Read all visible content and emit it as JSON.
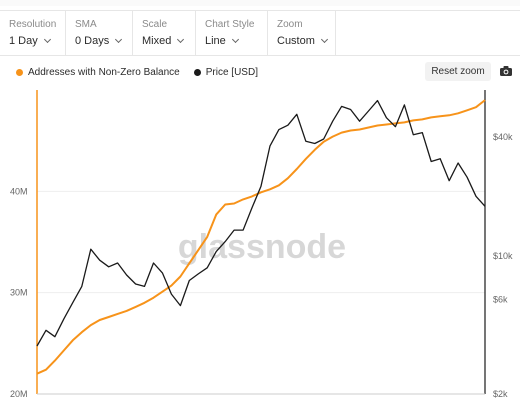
{
  "controls": [
    {
      "label": "Resolution",
      "value": "1 Day"
    },
    {
      "label": "SMA",
      "value": "0 Days"
    },
    {
      "label": "Scale",
      "value": "Mixed"
    },
    {
      "label": "Chart Style",
      "value": "Line"
    },
    {
      "label": "Zoom",
      "value": "Custom"
    }
  ],
  "toolbar": {
    "reset_label": "Reset zoom",
    "camera_icon": "camera-icon"
  },
  "watermark": "glassnode",
  "colors": {
    "addresses": "#f7931a",
    "price": "#1a1a1a",
    "grid": "#eeeeee",
    "price_axis": "#1a1a1a"
  },
  "chart_data": {
    "type": "line",
    "title": "",
    "legend_position": "top-left",
    "series": [
      {
        "name": "Addresses with Non-Zero Balance",
        "axis": "left",
        "x": [
          0,
          2,
          4,
          6,
          8,
          10,
          12,
          14,
          16,
          18,
          20,
          22,
          24,
          26,
          28,
          30,
          32,
          34,
          36,
          38,
          40,
          42,
          44,
          46,
          48,
          50,
          52,
          54,
          56,
          58,
          60,
          62,
          64,
          66,
          68,
          70,
          72,
          74,
          76,
          78,
          80,
          82,
          84,
          86,
          88,
          90,
          92,
          94,
          96,
          98,
          100
        ],
        "values": [
          22.0,
          22.4,
          23.3,
          24.3,
          25.3,
          26.1,
          26.8,
          27.3,
          27.6,
          27.9,
          28.2,
          28.6,
          29.0,
          29.5,
          30.1,
          30.7,
          31.6,
          32.9,
          34.2,
          35.5,
          37.7,
          38.7,
          38.8,
          39.2,
          39.5,
          39.9,
          40.2,
          40.6,
          41.3,
          42.2,
          43.2,
          44.1,
          44.9,
          45.4,
          45.8,
          46.0,
          46.1,
          46.3,
          46.5,
          46.6,
          46.7,
          46.8,
          47.0,
          47.1,
          47.3,
          47.4,
          47.5,
          47.7,
          48.0,
          48.3,
          49.0
        ]
      },
      {
        "name": "Price [USD]",
        "axis": "right",
        "x": [
          0,
          2,
          4,
          6,
          8,
          10,
          12,
          14,
          16,
          18,
          20,
          22,
          24,
          26,
          28,
          30,
          32,
          34,
          36,
          38,
          40,
          42,
          44,
          46,
          48,
          50,
          52,
          54,
          56,
          58,
          60,
          62,
          64,
          66,
          68,
          70,
          72,
          74,
          76,
          78,
          80,
          82,
          84,
          86,
          88,
          90,
          92,
          94,
          96,
          98,
          100
        ],
        "values": [
          3500,
          4200,
          3900,
          4800,
          5800,
          7000,
          10800,
          9500,
          8800,
          9200,
          8000,
          7200,
          7000,
          9200,
          8200,
          6400,
          5600,
          7500,
          8100,
          8700,
          10500,
          11800,
          13500,
          13500,
          17500,
          22500,
          36000,
          43500,
          45800,
          52000,
          38000,
          37000,
          39000,
          48000,
          57000,
          55000,
          48000,
          54000,
          61000,
          50000,
          45000,
          58000,
          41000,
          42000,
          30000,
          31000,
          24000,
          29500,
          25000,
          20000,
          17800
        ]
      }
    ],
    "y_left": {
      "ticks": [
        "20M",
        "30M",
        "40M"
      ],
      "ylim": [
        20,
        50
      ]
    },
    "y_right": {
      "scale": "log",
      "ticks": [
        "$2k",
        "$6k",
        "$10k",
        "$40k"
      ],
      "ylim": [
        2000,
        69000
      ]
    },
    "x_range": [
      0,
      100
    ]
  }
}
